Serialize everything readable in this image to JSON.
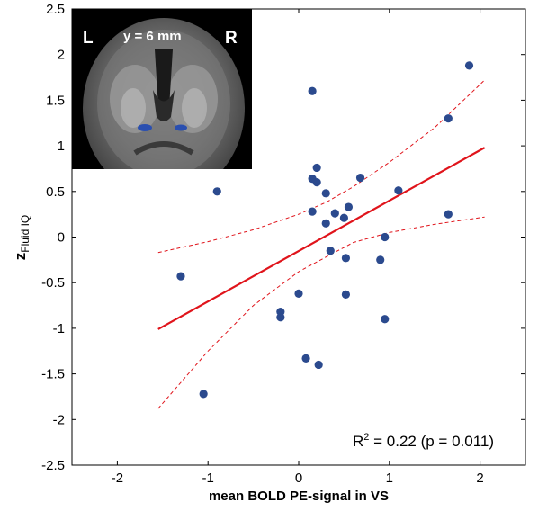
{
  "chart_data": {
    "type": "scatter",
    "xlabel": "mean BOLD PE-signal in VS",
    "ylabel_main": "z",
    "ylabel_sub": "Fluid IQ",
    "xlim": [
      -2.5,
      2.5
    ],
    "ylim": [
      -2.5,
      2.5
    ],
    "xticks": [
      -2,
      -1,
      0,
      1,
      2
    ],
    "yticks": [
      -2.5,
      -2,
      -1.5,
      -1,
      -0.5,
      0,
      0.5,
      1,
      1.5,
      2,
      2.5
    ],
    "xtick_labels": [
      "-2",
      "-1",
      "0",
      "1",
      "2"
    ],
    "ytick_labels": [
      "-2.5",
      "-2",
      "-1.5",
      "-1",
      "-0.5",
      "0",
      "0.5",
      "1",
      "1.5",
      "2",
      "2.5"
    ],
    "points": [
      {
        "x": 1.88,
        "y": 1.88
      },
      {
        "x": 0.15,
        "y": 1.6
      },
      {
        "x": 1.65,
        "y": 1.3
      },
      {
        "x": 0.2,
        "y": 0.76
      },
      {
        "x": 0.15,
        "y": 0.64
      },
      {
        "x": 0.2,
        "y": 0.6
      },
      {
        "x": 0.68,
        "y": 0.65
      },
      {
        "x": 0.3,
        "y": 0.48
      },
      {
        "x": 1.1,
        "y": 0.51
      },
      {
        "x": -0.9,
        "y": 0.5
      },
      {
        "x": 0.15,
        "y": 0.28
      },
      {
        "x": 0.55,
        "y": 0.33
      },
      {
        "x": 0.4,
        "y": 0.26
      },
      {
        "x": 0.5,
        "y": 0.21
      },
      {
        "x": 0.3,
        "y": 0.15
      },
      {
        "x": 1.65,
        "y": 0.25
      },
      {
        "x": 0.95,
        "y": 0.0
      },
      {
        "x": 0.35,
        "y": -0.15
      },
      {
        "x": 0.52,
        "y": -0.23
      },
      {
        "x": 0.9,
        "y": -0.25
      },
      {
        "x": -1.3,
        "y": -0.43
      },
      {
        "x": 0.0,
        "y": -0.62
      },
      {
        "x": 0.52,
        "y": -0.63
      },
      {
        "x": -0.2,
        "y": -0.82
      },
      {
        "x": -0.2,
        "y": -0.88
      },
      {
        "x": 0.95,
        "y": -0.9
      },
      {
        "x": 0.08,
        "y": -1.33
      },
      {
        "x": 0.22,
        "y": -1.4
      },
      {
        "x": -1.05,
        "y": -1.72
      }
    ],
    "fit_line": {
      "x": [
        -1.55,
        2.05
      ],
      "y": [
        -1.01,
        0.98
      ]
    },
    "ci_upper": {
      "x": [
        -1.55,
        -1.0,
        -0.5,
        0.0,
        0.3,
        0.6,
        1.0,
        1.5,
        2.05
      ],
      "y": [
        -0.17,
        -0.05,
        0.08,
        0.25,
        0.38,
        0.55,
        0.82,
        1.2,
        1.72
      ]
    },
    "ci_lower": {
      "x": [
        -1.55,
        -1.0,
        -0.5,
        0.0,
        0.3,
        0.6,
        1.0,
        1.5,
        2.05
      ],
      "y": [
        -1.88,
        -1.25,
        -0.75,
        -0.38,
        -0.22,
        -0.06,
        0.05,
        0.14,
        0.22
      ]
    },
    "annotation": {
      "r2_prefix": "R",
      "r2_sup": "2",
      "r2_rest": " = 0.22 (p = 0.011)"
    },
    "inset": {
      "left_label": "L",
      "coord_label": "y = 6 mm",
      "right_label": "R"
    },
    "colors": {
      "points": "#2b4a8e",
      "fit": "#e0141b",
      "axis": "#000000"
    },
    "grid": false
  }
}
